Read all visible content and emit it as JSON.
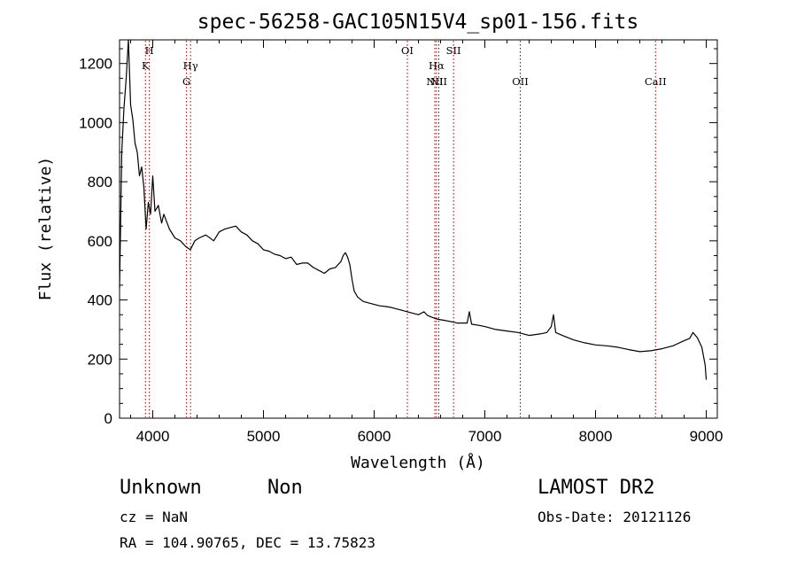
{
  "chart_data": {
    "type": "line",
    "title": "spec-56258-GAC105N15V4_sp01-156.fits",
    "xlabel": "Wavelength (Å)",
    "ylabel": "Flux (relative)",
    "xlim": [
      3700,
      9100
    ],
    "ylim": [
      0,
      1280
    ],
    "xticks": [
      4000,
      5000,
      6000,
      7000,
      8000,
      9000
    ],
    "yticks": [
      0,
      200,
      400,
      600,
      800,
      1000,
      1200
    ],
    "grid": false,
    "series": [
      {
        "points": [
          [
            3700,
            440
          ],
          [
            3720,
            900
          ],
          [
            3740,
            1050
          ],
          [
            3760,
            1150
          ],
          [
            3780,
            1280
          ],
          [
            3800,
            1060
          ],
          [
            3820,
            1010
          ],
          [
            3840,
            930
          ],
          [
            3860,
            900
          ],
          [
            3880,
            820
          ],
          [
            3900,
            850
          ],
          [
            3920,
            780
          ],
          [
            3940,
            640
          ],
          [
            3960,
            730
          ],
          [
            3980,
            690
          ],
          [
            4000,
            820
          ],
          [
            4020,
            700
          ],
          [
            4050,
            720
          ],
          [
            4080,
            660
          ],
          [
            4100,
            690
          ],
          [
            4150,
            640
          ],
          [
            4200,
            610
          ],
          [
            4250,
            600
          ],
          [
            4300,
            580
          ],
          [
            4340,
            570
          ],
          [
            4380,
            600
          ],
          [
            4420,
            610
          ],
          [
            4480,
            620
          ],
          [
            4550,
            600
          ],
          [
            4600,
            630
          ],
          [
            4650,
            640
          ],
          [
            4700,
            645
          ],
          [
            4750,
            650
          ],
          [
            4800,
            630
          ],
          [
            4850,
            620
          ],
          [
            4900,
            600
          ],
          [
            4950,
            590
          ],
          [
            5000,
            570
          ],
          [
            5050,
            565
          ],
          [
            5100,
            555
          ],
          [
            5150,
            550
          ],
          [
            5200,
            540
          ],
          [
            5250,
            545
          ],
          [
            5300,
            520
          ],
          [
            5350,
            525
          ],
          [
            5400,
            525
          ],
          [
            5450,
            510
          ],
          [
            5500,
            500
          ],
          [
            5550,
            490
          ],
          [
            5600,
            505
          ],
          [
            5650,
            510
          ],
          [
            5700,
            530
          ],
          [
            5720,
            550
          ],
          [
            5740,
            560
          ],
          [
            5760,
            545
          ],
          [
            5780,
            520
          ],
          [
            5800,
            470
          ],
          [
            5820,
            430
          ],
          [
            5850,
            410
          ],
          [
            5900,
            395
          ],
          [
            5950,
            390
          ],
          [
            6000,
            385
          ],
          [
            6050,
            380
          ],
          [
            6100,
            378
          ],
          [
            6150,
            375
          ],
          [
            6200,
            370
          ],
          [
            6250,
            365
          ],
          [
            6300,
            360
          ],
          [
            6350,
            355
          ],
          [
            6400,
            350
          ],
          [
            6450,
            360
          ],
          [
            6480,
            348
          ],
          [
            6520,
            342
          ],
          [
            6560,
            336
          ],
          [
            6600,
            333
          ],
          [
            6650,
            330
          ],
          [
            6700,
            326
          ],
          [
            6750,
            322
          ],
          [
            6800,
            322
          ],
          [
            6840,
            322
          ],
          [
            6860,
            360
          ],
          [
            6880,
            318
          ],
          [
            6950,
            314
          ],
          [
            7000,
            310
          ],
          [
            7100,
            300
          ],
          [
            7200,
            295
          ],
          [
            7300,
            290
          ],
          [
            7400,
            280
          ],
          [
            7500,
            285
          ],
          [
            7560,
            290
          ],
          [
            7600,
            310
          ],
          [
            7620,
            350
          ],
          [
            7640,
            290
          ],
          [
            7700,
            280
          ],
          [
            7800,
            265
          ],
          [
            7900,
            255
          ],
          [
            8000,
            248
          ],
          [
            8100,
            245
          ],
          [
            8200,
            240
          ],
          [
            8300,
            232
          ],
          [
            8400,
            225
          ],
          [
            8500,
            228
          ],
          [
            8600,
            235
          ],
          [
            8700,
            245
          ],
          [
            8800,
            262
          ],
          [
            8850,
            270
          ],
          [
            8880,
            290
          ],
          [
            8920,
            272
          ],
          [
            8960,
            240
          ],
          [
            8990,
            180
          ],
          [
            9000,
            130
          ]
        ]
      }
    ],
    "lines": [
      {
        "label": "K",
        "x": 3934
      },
      {
        "label": "H",
        "x": 3969
      },
      {
        "label": "G",
        "x": 4305
      },
      {
        "label": "Hγ",
        "x": 4341
      },
      {
        "label": "OI",
        "x": 6300
      },
      {
        "label": "NII",
        "x": 6548
      },
      {
        "label": "Hα",
        "x": 6563
      },
      {
        "label": "NII",
        "x": 6584
      },
      {
        "label": "SII",
        "x": 6717
      },
      {
        "label": "OII",
        "x": 7320
      },
      {
        "label": "CaII",
        "x": 8542
      }
    ],
    "line_color": "#8b0000"
  },
  "info": {
    "classification": "Unknown",
    "subclass": "Non",
    "cz": "cz = NaN",
    "coords": "RA = 104.90765, DEC =  13.75823",
    "survey": "LAMOST DR2",
    "obs_date": "Obs-Date: 20121126"
  }
}
